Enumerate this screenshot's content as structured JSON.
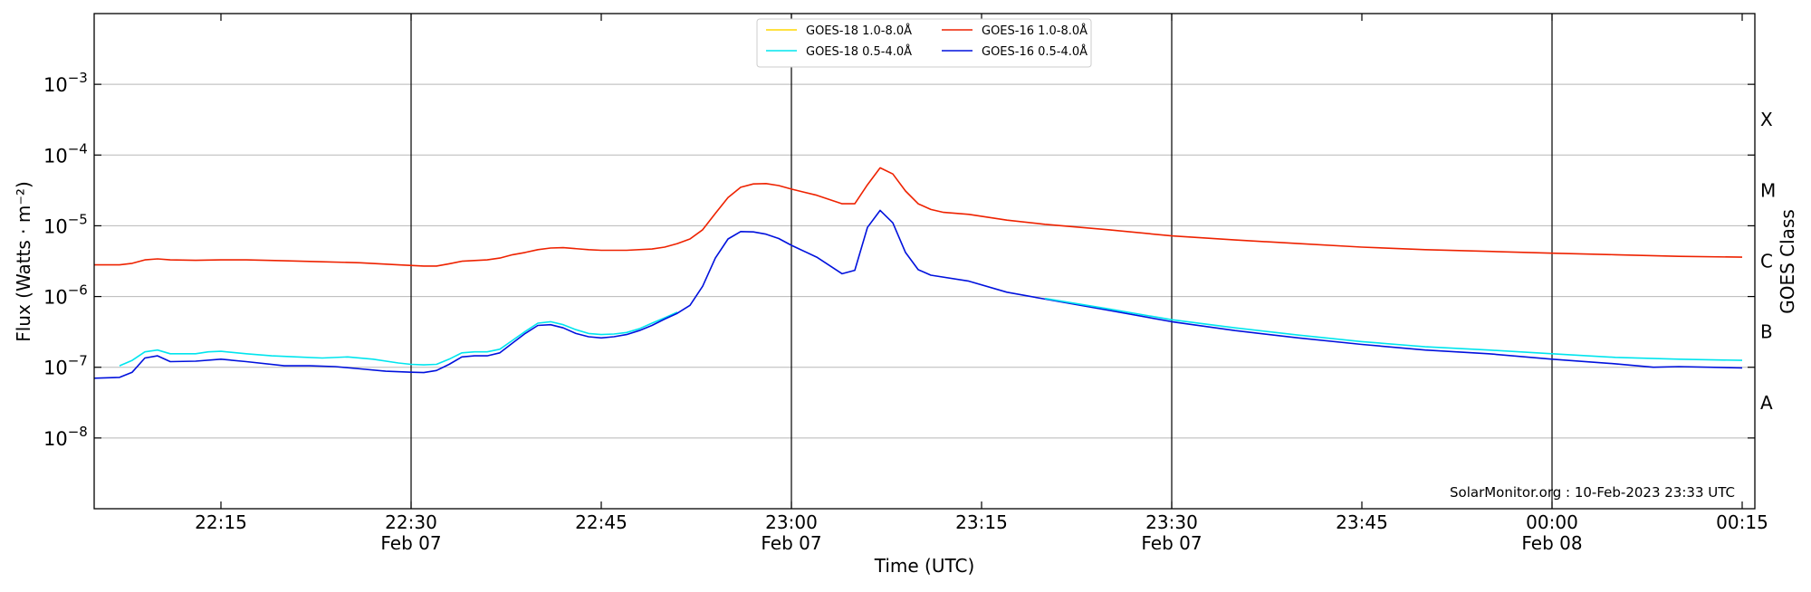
{
  "chart_data": {
    "type": "line",
    "title": "",
    "xlabel": "Time (UTC)",
    "ylabel": "Flux (Watts · m⁻²)",
    "y2label": "GOES Class",
    "yscale": "log",
    "ylim": [
      1e-09,
      0.01
    ],
    "xlim": [
      "2023-02-07 22:05",
      "2023-02-08 00:16"
    ],
    "x_unit": "UTC time",
    "grid": "horizontal at decades",
    "legend_position": "top-center",
    "watermark": "SolarMonitor.org : 10-Feb-2023 23:33 UTC",
    "x_ticks": [
      {
        "time": "2023-02-07 22:15",
        "label": "22:15",
        "date": ""
      },
      {
        "time": "2023-02-07 22:30",
        "label": "22:30",
        "date": "Feb 07"
      },
      {
        "time": "2023-02-07 22:45",
        "label": "22:45",
        "date": ""
      },
      {
        "time": "2023-02-07 23:00",
        "label": "23:00",
        "date": "Feb 07"
      },
      {
        "time": "2023-02-07 23:15",
        "label": "23:15",
        "date": ""
      },
      {
        "time": "2023-02-07 23:30",
        "label": "23:30",
        "date": "Feb 07"
      },
      {
        "time": "2023-02-07 23:45",
        "label": "23:45",
        "date": ""
      },
      {
        "time": "2023-02-08 00:00",
        "label": "00:00",
        "date": "Feb 08"
      },
      {
        "time": "2023-02-08 00:15",
        "label": "00:15",
        "date": ""
      }
    ],
    "date_boundaries": [
      "2023-02-07 22:30",
      "2023-02-07 23:00",
      "2023-02-07 23:30",
      "2023-02-08 00:00"
    ],
    "y_ticks": [
      {
        "value": 1e-08,
        "mantissa": "10",
        "exp": "−8"
      },
      {
        "value": 1e-07,
        "mantissa": "10",
        "exp": "−7"
      },
      {
        "value": 1e-06,
        "mantissa": "10",
        "exp": "−6"
      },
      {
        "value": 1e-05,
        "mantissa": "10",
        "exp": "−5"
      },
      {
        "value": 0.0001,
        "mantissa": "10",
        "exp": "−4"
      },
      {
        "value": 0.001,
        "mantissa": "10",
        "exp": "−3"
      }
    ],
    "goes_classes": [
      {
        "label": "A",
        "value": 3.16e-08
      },
      {
        "label": "B",
        "value": 3.16e-07
      },
      {
        "label": "C",
        "value": 3.16e-06
      },
      {
        "label": "M",
        "value": 3.16e-05
      },
      {
        "label": "X",
        "value": 0.000316
      }
    ],
    "series": [
      {
        "name": "GOES-18 1.0-8.0Å",
        "color": "#ffd700",
        "points": []
      },
      {
        "name": "GOES-18 0.5-4.0Å",
        "color": "#00e5ee",
        "points": [
          [
            "2023-02-07 22:07",
            1.05e-07
          ],
          [
            "2023-02-07 22:08",
            1.25e-07
          ],
          [
            "2023-02-07 22:09",
            1.65e-07
          ],
          [
            "2023-02-07 22:10",
            1.75e-07
          ],
          [
            "2023-02-07 22:11",
            1.55e-07
          ],
          [
            "2023-02-07 22:12",
            1.55e-07
          ],
          [
            "2023-02-07 22:13",
            1.55e-07
          ],
          [
            "2023-02-07 22:14",
            1.65e-07
          ],
          [
            "2023-02-07 22:15",
            1.68e-07
          ],
          [
            "2023-02-07 22:17",
            1.55e-07
          ],
          [
            "2023-02-07 22:19",
            1.45e-07
          ],
          [
            "2023-02-07 22:21",
            1.4e-07
          ],
          [
            "2023-02-07 22:23",
            1.35e-07
          ],
          [
            "2023-02-07 22:25",
            1.4e-07
          ],
          [
            "2023-02-07 22:27",
            1.3e-07
          ],
          [
            "2023-02-07 22:29",
            1.15e-07
          ],
          [
            "2023-02-07 22:30",
            1.1e-07
          ],
          [
            "2023-02-07 22:31",
            1.08e-07
          ],
          [
            "2023-02-07 22:32",
            1.1e-07
          ],
          [
            "2023-02-07 22:33",
            1.3e-07
          ],
          [
            "2023-02-07 22:34",
            1.6e-07
          ],
          [
            "2023-02-07 22:35",
            1.65e-07
          ],
          [
            "2023-02-07 22:36",
            1.65e-07
          ],
          [
            "2023-02-07 22:37",
            1.8e-07
          ],
          [
            "2023-02-07 22:38",
            2.4e-07
          ],
          [
            "2023-02-07 22:39",
            3.2e-07
          ],
          [
            "2023-02-07 22:40",
            4.2e-07
          ],
          [
            "2023-02-07 22:41",
            4.4e-07
          ],
          [
            "2023-02-07 22:42",
            4e-07
          ],
          [
            "2023-02-07 22:43",
            3.4e-07
          ],
          [
            "2023-02-07 22:44",
            3e-07
          ],
          [
            "2023-02-07 22:45",
            2.9e-07
          ],
          [
            "2023-02-07 22:46",
            2.95e-07
          ],
          [
            "2023-02-07 22:47",
            3.1e-07
          ],
          [
            "2023-02-07 22:48",
            3.5e-07
          ],
          [
            "2023-02-07 22:49",
            4.2e-07
          ],
          [
            "2023-02-07 22:50",
            5e-07
          ],
          [
            "2023-02-07 22:51",
            6e-07
          ]
        ]
      },
      {
        "name": "GOES-16 1.0-8.0Å",
        "color": "#ee2200",
        "points": [
          [
            "2023-02-07 22:05",
            2.8e-06
          ],
          [
            "2023-02-07 22:07",
            2.8e-06
          ],
          [
            "2023-02-07 22:08",
            2.95e-06
          ],
          [
            "2023-02-07 22:09",
            3.3e-06
          ],
          [
            "2023-02-07 22:10",
            3.4e-06
          ],
          [
            "2023-02-07 22:11",
            3.3e-06
          ],
          [
            "2023-02-07 22:13",
            3.25e-06
          ],
          [
            "2023-02-07 22:15",
            3.3e-06
          ],
          [
            "2023-02-07 22:17",
            3.3e-06
          ],
          [
            "2023-02-07 22:20",
            3.2e-06
          ],
          [
            "2023-02-07 22:23",
            3.1e-06
          ],
          [
            "2023-02-07 22:26",
            3e-06
          ],
          [
            "2023-02-07 22:29",
            2.8e-06
          ],
          [
            "2023-02-07 22:31",
            2.7e-06
          ],
          [
            "2023-02-07 22:32",
            2.7e-06
          ],
          [
            "2023-02-07 22:33",
            2.9e-06
          ],
          [
            "2023-02-07 22:34",
            3.15e-06
          ],
          [
            "2023-02-07 22:36",
            3.3e-06
          ],
          [
            "2023-02-07 22:37",
            3.5e-06
          ],
          [
            "2023-02-07 22:38",
            3.9e-06
          ],
          [
            "2023-02-07 22:39",
            4.2e-06
          ],
          [
            "2023-02-07 22:40",
            4.6e-06
          ],
          [
            "2023-02-07 22:41",
            4.85e-06
          ],
          [
            "2023-02-07 22:42",
            4.9e-06
          ],
          [
            "2023-02-07 22:44",
            4.6e-06
          ],
          [
            "2023-02-07 22:45",
            4.5e-06
          ],
          [
            "2023-02-07 22:47",
            4.5e-06
          ],
          [
            "2023-02-07 22:49",
            4.7e-06
          ],
          [
            "2023-02-07 22:50",
            5e-06
          ],
          [
            "2023-02-07 22:51",
            5.6e-06
          ],
          [
            "2023-02-07 22:52",
            6.5e-06
          ],
          [
            "2023-02-07 22:53",
            8.8e-06
          ],
          [
            "2023-02-07 22:54",
            1.5e-05
          ],
          [
            "2023-02-07 22:55",
            2.5e-05
          ],
          [
            "2023-02-07 22:56",
            3.5e-05
          ],
          [
            "2023-02-07 22:57",
            3.9e-05
          ],
          [
            "2023-02-07 22:58",
            3.95e-05
          ],
          [
            "2023-02-07 22:59",
            3.7e-05
          ],
          [
            "2023-02-07 23:00",
            3.3e-05
          ],
          [
            "2023-02-07 23:02",
            2.7e-05
          ],
          [
            "2023-02-07 23:04",
            2.05e-05
          ],
          [
            "2023-02-07 23:05",
            2.05e-05
          ],
          [
            "2023-02-07 23:06",
            3.8e-05
          ],
          [
            "2023-02-07 23:07",
            6.6e-05
          ],
          [
            "2023-02-07 23:08",
            5.4e-05
          ],
          [
            "2023-02-07 23:09",
            3.1e-05
          ],
          [
            "2023-02-07 23:10",
            2.05e-05
          ],
          [
            "2023-02-07 23:11",
            1.7e-05
          ],
          [
            "2023-02-07 23:12",
            1.55e-05
          ],
          [
            "2023-02-07 23:14",
            1.45e-05
          ],
          [
            "2023-02-07 23:17",
            1.2e-05
          ],
          [
            "2023-02-07 23:20",
            1.05e-05
          ],
          [
            "2023-02-07 23:25",
            8.8e-06
          ],
          [
            "2023-02-07 23:30",
            7.2e-06
          ],
          [
            "2023-02-07 23:35",
            6.3e-06
          ],
          [
            "2023-02-07 23:40",
            5.6e-06
          ],
          [
            "2023-02-07 23:45",
            5e-06
          ],
          [
            "2023-02-07 23:50",
            4.6e-06
          ],
          [
            "2023-02-07 23:55",
            4.35e-06
          ],
          [
            "2023-02-08 00:00",
            4.1e-06
          ],
          [
            "2023-02-08 00:05",
            3.9e-06
          ],
          [
            "2023-02-08 00:10",
            3.7e-06
          ],
          [
            "2023-02-08 00:15",
            3.6e-06
          ]
        ]
      },
      {
        "name": "GOES-16 0.5-4.0Å",
        "color": "#0011dd",
        "points": [
          [
            "2023-02-07 22:05",
            7e-08
          ],
          [
            "2023-02-07 22:07",
            7.2e-08
          ],
          [
            "2023-02-07 22:08",
            8.5e-08
          ],
          [
            "2023-02-07 22:09",
            1.35e-07
          ],
          [
            "2023-02-07 22:10",
            1.45e-07
          ],
          [
            "2023-02-07 22:11",
            1.2e-07
          ],
          [
            "2023-02-07 22:13",
            1.22e-07
          ],
          [
            "2023-02-07 22:15",
            1.3e-07
          ],
          [
            "2023-02-07 22:17",
            1.2e-07
          ],
          [
            "2023-02-07 22:20",
            1.05e-07
          ],
          [
            "2023-02-07 22:22",
            1.05e-07
          ],
          [
            "2023-02-07 22:24",
            1.02e-07
          ],
          [
            "2023-02-07 22:26",
            9.5e-08
          ],
          [
            "2023-02-07 22:28",
            8.8e-08
          ],
          [
            "2023-02-07 22:30",
            8.5e-08
          ],
          [
            "2023-02-07 22:31",
            8.4e-08
          ],
          [
            "2023-02-07 22:32",
            9e-08
          ],
          [
            "2023-02-07 22:33",
            1.1e-07
          ],
          [
            "2023-02-07 22:34",
            1.4e-07
          ],
          [
            "2023-02-07 22:35",
            1.45e-07
          ],
          [
            "2023-02-07 22:36",
            1.45e-07
          ],
          [
            "2023-02-07 22:37",
            1.6e-07
          ],
          [
            "2023-02-07 22:38",
            2.2e-07
          ],
          [
            "2023-02-07 22:39",
            3e-07
          ],
          [
            "2023-02-07 22:40",
            3.9e-07
          ],
          [
            "2023-02-07 22:41",
            4e-07
          ],
          [
            "2023-02-07 22:42",
            3.6e-07
          ],
          [
            "2023-02-07 22:43",
            3e-07
          ],
          [
            "2023-02-07 22:44",
            2.7e-07
          ],
          [
            "2023-02-07 22:45",
            2.6e-07
          ],
          [
            "2023-02-07 22:46",
            2.7e-07
          ],
          [
            "2023-02-07 22:47",
            2.9e-07
          ],
          [
            "2023-02-07 22:48",
            3.3e-07
          ],
          [
            "2023-02-07 22:49",
            3.9e-07
          ],
          [
            "2023-02-07 22:50",
            4.8e-07
          ],
          [
            "2023-02-07 22:51",
            5.8e-07
          ],
          [
            "2023-02-07 22:52",
            7.5e-07
          ],
          [
            "2023-02-07 22:53",
            1.4e-06
          ],
          [
            "2023-02-07 22:54",
            3.5e-06
          ],
          [
            "2023-02-07 22:55",
            6.5e-06
          ],
          [
            "2023-02-07 22:56",
            8.3e-06
          ],
          [
            "2023-02-07 22:57",
            8.2e-06
          ],
          [
            "2023-02-07 22:58",
            7.6e-06
          ],
          [
            "2023-02-07 22:59",
            6.6e-06
          ],
          [
            "2023-02-07 23:00",
            5.3e-06
          ],
          [
            "2023-02-07 23:02",
            3.6e-06
          ],
          [
            "2023-02-07 23:04",
            2.1e-06
          ],
          [
            "2023-02-07 23:05",
            2.35e-06
          ],
          [
            "2023-02-07 23:06",
            9.5e-06
          ],
          [
            "2023-02-07 23:07",
            1.65e-05
          ],
          [
            "2023-02-07 23:08",
            1.1e-05
          ],
          [
            "2023-02-07 23:09",
            4.2e-06
          ],
          [
            "2023-02-07 23:10",
            2.4e-06
          ],
          [
            "2023-02-07 23:11",
            2e-06
          ],
          [
            "2023-02-07 23:14",
            1.65e-06
          ],
          [
            "2023-02-07 23:17",
            1.15e-06
          ],
          [
            "2023-02-07 23:20",
            9.2e-07
          ],
          [
            "2023-02-07 23:25",
            6.4e-07
          ],
          [
            "2023-02-07 23:30",
            4.4e-07
          ],
          [
            "2023-02-07 23:35",
            3.3e-07
          ],
          [
            "2023-02-07 23:40",
            2.6e-07
          ],
          [
            "2023-02-07 23:45",
            2.1e-07
          ],
          [
            "2023-02-07 23:50",
            1.75e-07
          ],
          [
            "2023-02-07 23:55",
            1.55e-07
          ],
          [
            "2023-02-08 00:00",
            1.3e-07
          ],
          [
            "2023-02-08 00:05",
            1.12e-07
          ],
          [
            "2023-02-08 00:08",
            1e-07
          ],
          [
            "2023-02-08 00:10",
            1.02e-07
          ],
          [
            "2023-02-08 00:15",
            9.8e-08
          ]
        ]
      },
      {
        "name": "GOES-18 0.5-4.0Å tail",
        "color": "#00e5ee",
        "legend": false,
        "points": [
          [
            "2023-02-07 23:20",
            9.4e-07
          ],
          [
            "2023-02-07 23:25",
            6.7e-07
          ],
          [
            "2023-02-07 23:30",
            4.7e-07
          ],
          [
            "2023-02-07 23:35",
            3.6e-07
          ],
          [
            "2023-02-07 23:40",
            2.85e-07
          ],
          [
            "2023-02-07 23:45",
            2.3e-07
          ],
          [
            "2023-02-07 23:50",
            1.95e-07
          ],
          [
            "2023-02-07 23:55",
            1.75e-07
          ],
          [
            "2023-02-08 00:00",
            1.55e-07
          ],
          [
            "2023-02-08 00:05",
            1.38e-07
          ],
          [
            "2023-02-08 00:10",
            1.3e-07
          ],
          [
            "2023-02-08 00:15",
            1.25e-07
          ]
        ]
      }
    ]
  }
}
